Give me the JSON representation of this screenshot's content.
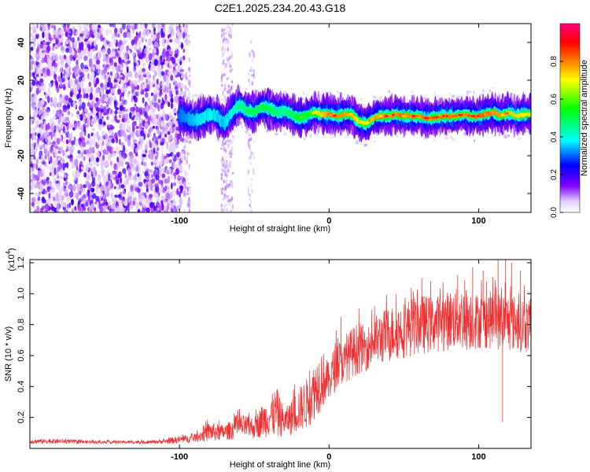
{
  "title": "C2E1.2025.234.20.43.G18",
  "chart_data": [
    {
      "type": "heatmap",
      "xlabel": "Height of straight line (km)",
      "ylabel": "Frequency (Hz)",
      "xlim": [
        -200,
        135
      ],
      "ylim": [
        -50,
        50
      ],
      "xticks": [
        -100,
        0,
        100
      ],
      "yticks": [
        -40,
        -20,
        0,
        20,
        40
      ],
      "colorbar": {
        "label": "Normalized spectral amplitude",
        "range": [
          0,
          1
        ],
        "ticks": [
          "0.0",
          "0.2",
          "0.4",
          "0.6",
          "0.8"
        ],
        "tick_values": [
          0,
          0.2,
          0.4,
          0.6,
          0.8
        ],
        "colors": [
          "#ffffff",
          "#e0c8ff",
          "#8000ff",
          "#0000ff",
          "#00ffff",
          "#00ff00",
          "#ffff00",
          "#ff8000",
          "#ff0000",
          "#ff0080"
        ]
      },
      "noise_region_end_km": -100,
      "band_center": [
        [
          -100,
          1
        ],
        [
          -95,
          0
        ],
        [
          -90,
          -1
        ],
        [
          -85,
          0
        ],
        [
          -80,
          2
        ],
        [
          -75,
          1
        ],
        [
          -70,
          -3
        ],
        [
          -65,
          3
        ],
        [
          -60,
          7
        ],
        [
          -55,
          4
        ],
        [
          -50,
          3
        ],
        [
          -45,
          6
        ],
        [
          -40,
          5
        ],
        [
          -35,
          3
        ],
        [
          -30,
          4
        ],
        [
          -25,
          2
        ],
        [
          -20,
          0
        ],
        [
          -15,
          1
        ],
        [
          -10,
          3
        ],
        [
          -5,
          2
        ],
        [
          0,
          2
        ],
        [
          5,
          1
        ],
        [
          10,
          2
        ],
        [
          15,
          2
        ],
        [
          20,
          -2
        ],
        [
          25,
          -3
        ],
        [
          30,
          0
        ],
        [
          35,
          1
        ],
        [
          40,
          1
        ],
        [
          45,
          2
        ],
        [
          50,
          1
        ],
        [
          55,
          1
        ],
        [
          60,
          1
        ],
        [
          65,
          0
        ],
        [
          70,
          0
        ],
        [
          75,
          1
        ],
        [
          80,
          1
        ],
        [
          85,
          1
        ],
        [
          90,
          2
        ],
        [
          95,
          1
        ],
        [
          100,
          1
        ],
        [
          105,
          2
        ],
        [
          110,
          3
        ],
        [
          115,
          1
        ],
        [
          120,
          3
        ],
        [
          125,
          1
        ],
        [
          130,
          2
        ],
        [
          135,
          2
        ]
      ],
      "band_peak_amplitude": [
        [
          -100,
          0.3
        ],
        [
          -90,
          0.35
        ],
        [
          -80,
          0.4
        ],
        [
          -70,
          0.35
        ],
        [
          -60,
          0.45
        ],
        [
          -50,
          0.5
        ],
        [
          -40,
          0.5
        ],
        [
          -30,
          0.45
        ],
        [
          -20,
          0.55
        ],
        [
          -10,
          0.65
        ],
        [
          0,
          0.8
        ],
        [
          10,
          0.85
        ],
        [
          20,
          0.7
        ],
        [
          30,
          0.75
        ],
        [
          40,
          0.9
        ],
        [
          50,
          0.85
        ],
        [
          60,
          0.9
        ],
        [
          70,
          0.95
        ],
        [
          80,
          0.85
        ],
        [
          90,
          0.9
        ],
        [
          100,
          0.85
        ],
        [
          110,
          0.8
        ],
        [
          120,
          0.75
        ],
        [
          135,
          0.7
        ]
      ]
    },
    {
      "type": "line",
      "unit_label": "(x10",
      "unit_exponent": "4",
      "unit_close": ")",
      "xlabel": "Height of straight line (km)",
      "ylabel": "SNR (10 * v/v)",
      "xlim": [
        -200,
        135
      ],
      "ylim": [
        0,
        1.22
      ],
      "xticks": [
        -100,
        0,
        100
      ],
      "yticks": [
        0.2,
        0.4,
        0.6,
        0.8,
        1.0,
        1.2
      ],
      "yticklabels": [
        "0.2",
        "0.4",
        "0.6",
        "0.8",
        "1.0",
        "1.2"
      ],
      "series_color": "#f03030",
      "envelope": [
        [
          -200,
          0.03,
          0.06
        ],
        [
          -180,
          0.03,
          0.06
        ],
        [
          -160,
          0.03,
          0.05
        ],
        [
          -140,
          0.03,
          0.05
        ],
        [
          -120,
          0.03,
          0.05
        ],
        [
          -110,
          0.03,
          0.06
        ],
        [
          -100,
          0.03,
          0.08
        ],
        [
          -90,
          0.04,
          0.09
        ],
        [
          -80,
          0.04,
          0.17
        ],
        [
          -70,
          0.05,
          0.15
        ],
        [
          -60,
          0.06,
          0.22
        ],
        [
          -50,
          0.06,
          0.2
        ],
        [
          -45,
          0.07,
          0.28
        ],
        [
          -40,
          0.07,
          0.32
        ],
        [
          -35,
          0.06,
          0.4
        ],
        [
          -30,
          0.08,
          0.25
        ],
        [
          -25,
          0.08,
          0.32
        ],
        [
          -20,
          0.1,
          0.4
        ],
        [
          -15,
          0.12,
          0.45
        ],
        [
          -10,
          0.18,
          0.55
        ],
        [
          -5,
          0.25,
          0.65
        ],
        [
          0,
          0.3,
          0.55
        ],
        [
          5,
          0.38,
          0.72
        ],
        [
          10,
          0.42,
          0.68
        ],
        [
          15,
          0.45,
          0.78
        ],
        [
          20,
          0.48,
          0.82
        ],
        [
          25,
          0.5,
          0.78
        ],
        [
          30,
          0.52,
          0.85
        ],
        [
          40,
          0.55,
          0.92
        ],
        [
          50,
          0.58,
          0.95
        ],
        [
          60,
          0.6,
          1.0
        ],
        [
          70,
          0.62,
          0.98
        ],
        [
          80,
          0.63,
          1.02
        ],
        [
          90,
          0.62,
          1.05
        ],
        [
          100,
          0.64,
          1.0
        ],
        [
          110,
          0.64,
          1.02
        ],
        [
          120,
          0.62,
          1.0
        ],
        [
          130,
          0.62,
          0.98
        ],
        [
          135,
          0.6,
          0.95
        ]
      ],
      "spikes": [
        [
          8,
          0.85
        ],
        [
          58,
          0.92
        ],
        [
          62,
          1.1
        ],
        [
          68,
          1.08
        ],
        [
          86,
          1.12
        ],
        [
          96,
          1.17
        ],
        [
          103,
          1.15
        ],
        [
          113,
          1.22
        ],
        [
          118,
          1.22
        ],
        [
          122,
          1.2
        ],
        [
          128,
          1.15
        ],
        [
          116,
          0.17
        ]
      ]
    }
  ]
}
